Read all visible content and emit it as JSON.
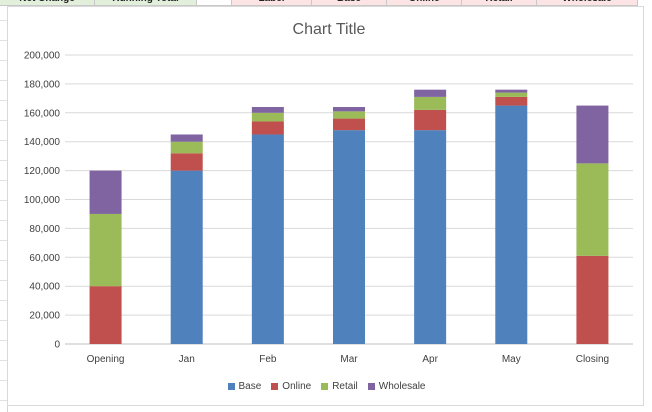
{
  "sheet_header": {
    "cells": [
      {
        "label": "Net Change",
        "bg": "#e2efda"
      },
      {
        "label": "Running Total",
        "bg": "#e2efda"
      },
      {
        "label": "",
        "bg": "#ffffff"
      },
      {
        "label": "Label",
        "bg": "#fce4e4"
      },
      {
        "label": "Base",
        "bg": "#fce4e4"
      },
      {
        "label": "Online",
        "bg": "#fce4e4"
      },
      {
        "label": "Retail",
        "bg": "#fce4e4"
      },
      {
        "label": "Wholesale",
        "bg": "#fce4e4"
      }
    ]
  },
  "chart_data": {
    "type": "bar",
    "stacked": true,
    "title": "Chart Title",
    "xlabel": "",
    "ylabel": "",
    "categories": [
      "Opening",
      "Jan",
      "Feb",
      "Mar",
      "Apr",
      "May",
      "Closing"
    ],
    "ylim": [
      0,
      200000
    ],
    "yticks": [
      "0",
      "20,000",
      "40,000",
      "60,000",
      "80,000",
      "100,000",
      "120,000",
      "140,000",
      "160,000",
      "180,000",
      "200,000"
    ],
    "ytick_values": [
      0,
      20000,
      40000,
      60000,
      80000,
      100000,
      120000,
      140000,
      160000,
      180000,
      200000
    ],
    "grid": true,
    "legend_position": "bottom",
    "series": [
      {
        "name": "Base",
        "color": "#4f81bd",
        "values": [
          0,
          120000,
          145000,
          148000,
          148000,
          165000,
          0
        ]
      },
      {
        "name": "Online",
        "color": "#c0504d",
        "values": [
          40000,
          12000,
          9000,
          8000,
          14000,
          6000,
          61000
        ]
      },
      {
        "name": "Retail",
        "color": "#9bbb59",
        "values": [
          50000,
          8000,
          6000,
          5000,
          9000,
          3000,
          64000
        ]
      },
      {
        "name": "Wholesale",
        "color": "#8064a2",
        "values": [
          30000,
          5000,
          4000,
          3000,
          5000,
          2000,
          40000
        ]
      }
    ]
  }
}
